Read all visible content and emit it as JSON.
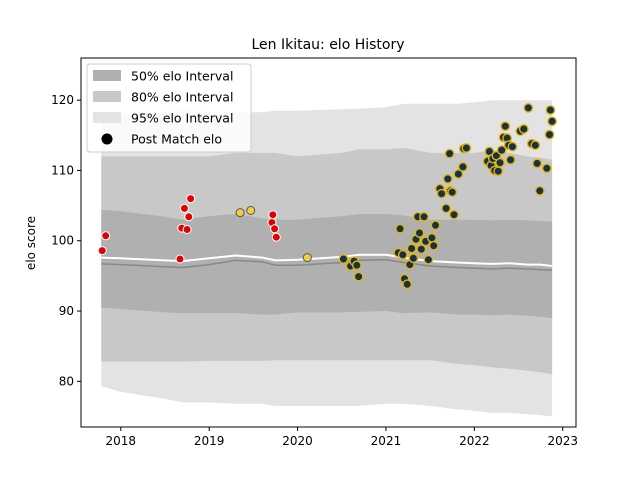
{
  "chart_data": {
    "type": "scatter",
    "title": "Len Ikitau: elo History",
    "xlabel": "",
    "ylabel": "elo score",
    "xlim": [
      2017.55,
      2023.15
    ],
    "ylim": [
      73.5,
      126
    ],
    "xticks": [
      2018,
      2019,
      2020,
      2021,
      2022,
      2023
    ],
    "yticks": [
      80,
      90,
      100,
      110,
      120
    ],
    "legend_position": "top-left",
    "legend": [
      {
        "label": "50% elo Interval",
        "kind": "band50"
      },
      {
        "label": "80% elo Interval",
        "kind": "band80"
      },
      {
        "label": "95% elo Interval",
        "kind": "band95"
      },
      {
        "label": "Post Match elo",
        "kind": "point"
      }
    ],
    "colors": {
      "band50": "#b0b0b0",
      "band80": "#c8c8c8",
      "band95": "#e3e3e3",
      "median_line": "#888888",
      "mean_line": "#ffffff",
      "early_points": "#e00000",
      "late_points_fill": "#123252",
      "late_points_edge": "#e8b400",
      "mid_points_fill": "#f0d040"
    },
    "interval_x": [
      2017.78,
      2018.0,
      2018.5,
      2018.7,
      2019.0,
      2019.3,
      2019.6,
      2019.75,
      2020.0,
      2020.5,
      2020.7,
      2021.0,
      2021.2,
      2021.5,
      2021.8,
      2022.0,
      2022.2,
      2022.4,
      2022.6,
      2022.75,
      2022.88
    ],
    "median": [
      96.7,
      96.6,
      96.3,
      96.2,
      96.6,
      97.2,
      97.0,
      96.5,
      96.5,
      96.9,
      97.2,
      97.3,
      96.9,
      96.4,
      96.2,
      96.1,
      96.0,
      96.1,
      96.0,
      95.9,
      95.8
    ],
    "mean": [
      97.6,
      97.5,
      97.2,
      97.1,
      97.5,
      97.9,
      97.6,
      97.2,
      97.3,
      97.7,
      98.0,
      98.0,
      97.6,
      97.1,
      96.9,
      96.8,
      96.7,
      96.8,
      96.6,
      96.6,
      96.4
    ],
    "p50_low": [
      90.5,
      90.3,
      89.8,
      89.7,
      89.7,
      89.7,
      89.5,
      89.5,
      89.8,
      89.8,
      89.9,
      90.0,
      89.7,
      89.8,
      89.5,
      89.5,
      89.4,
      89.5,
      89.3,
      89.2,
      89.0
    ],
    "p50_high": [
      104.4,
      104.2,
      103.4,
      103.0,
      103.5,
      103.8,
      103.2,
      103.0,
      103.0,
      103.5,
      103.8,
      103.8,
      103.6,
      103.0,
      103.0,
      103.0,
      102.9,
      103.0,
      102.9,
      102.8,
      102.7
    ],
    "p80_low": [
      82.8,
      82.8,
      82.8,
      82.8,
      82.9,
      82.9,
      82.9,
      83.0,
      83.0,
      83.0,
      83.0,
      83.0,
      83.0,
      83.0,
      82.5,
      82.3,
      82.0,
      81.8,
      81.5,
      81.3,
      81.0
    ],
    "p80_high": [
      112.0,
      112.0,
      112.0,
      112.0,
      112.0,
      112.5,
      112.5,
      112.5,
      112.0,
      112.5,
      113.0,
      113.0,
      113.2,
      112.5,
      112.5,
      112.5,
      112.8,
      112.5,
      112.0,
      111.8,
      111.5
    ],
    "p95_low": [
      79.3,
      78.5,
      77.5,
      77.0,
      77.0,
      76.8,
      76.8,
      76.5,
      76.5,
      76.5,
      76.5,
      76.8,
      76.8,
      76.5,
      76.0,
      75.8,
      75.5,
      75.5,
      75.3,
      75.2,
      75.0
    ],
    "p95_high": [
      117.5,
      117.8,
      118.3,
      118.5,
      118.3,
      118.2,
      118.3,
      118.5,
      118.5,
      118.7,
      118.8,
      119.0,
      119.5,
      119.5,
      119.5,
      119.7,
      120.0,
      120.0,
      120.0,
      120.0,
      120.0
    ],
    "points_early": [
      {
        "x": 2017.79,
        "y": 98.6
      },
      {
        "x": 2017.83,
        "y": 100.7
      },
      {
        "x": 2018.67,
        "y": 97.4
      },
      {
        "x": 2018.69,
        "y": 101.8
      },
      {
        "x": 2018.72,
        "y": 104.6
      },
      {
        "x": 2018.75,
        "y": 101.6
      },
      {
        "x": 2018.77,
        "y": 103.4
      },
      {
        "x": 2018.79,
        "y": 106.0
      },
      {
        "x": 2019.71,
        "y": 102.6
      },
      {
        "x": 2019.72,
        "y": 103.7
      },
      {
        "x": 2019.74,
        "y": 101.7
      },
      {
        "x": 2019.76,
        "y": 100.5
      }
    ],
    "points_mid": [
      {
        "x": 2019.35,
        "y": 104.0
      },
      {
        "x": 2019.47,
        "y": 104.3
      },
      {
        "x": 2020.11,
        "y": 97.6
      }
    ],
    "points_late": [
      {
        "x": 2020.52,
        "y": 97.4
      },
      {
        "x": 2020.6,
        "y": 96.4
      },
      {
        "x": 2020.64,
        "y": 97.1
      },
      {
        "x": 2020.67,
        "y": 96.5
      },
      {
        "x": 2020.69,
        "y": 94.9
      },
      {
        "x": 2021.14,
        "y": 98.3
      },
      {
        "x": 2021.16,
        "y": 101.7
      },
      {
        "x": 2021.19,
        "y": 98.0
      },
      {
        "x": 2021.21,
        "y": 94.6
      },
      {
        "x": 2021.24,
        "y": 93.8
      },
      {
        "x": 2021.27,
        "y": 96.6
      },
      {
        "x": 2021.29,
        "y": 98.9
      },
      {
        "x": 2021.31,
        "y": 97.5
      },
      {
        "x": 2021.34,
        "y": 100.2
      },
      {
        "x": 2021.36,
        "y": 103.4
      },
      {
        "x": 2021.38,
        "y": 101.1
      },
      {
        "x": 2021.4,
        "y": 98.8
      },
      {
        "x": 2021.43,
        "y": 103.4
      },
      {
        "x": 2021.45,
        "y": 99.9
      },
      {
        "x": 2021.48,
        "y": 97.3
      },
      {
        "x": 2021.52,
        "y": 100.4
      },
      {
        "x": 2021.54,
        "y": 99.3
      },
      {
        "x": 2021.56,
        "y": 102.2
      },
      {
        "x": 2021.61,
        "y": 107.4
      },
      {
        "x": 2021.63,
        "y": 106.7
      },
      {
        "x": 2021.68,
        "y": 104.6
      },
      {
        "x": 2021.7,
        "y": 108.8
      },
      {
        "x": 2021.73,
        "y": 107.1
      },
      {
        "x": 2021.75,
        "y": 106.9
      },
      {
        "x": 2021.72,
        "y": 112.4
      },
      {
        "x": 2021.77,
        "y": 103.7
      },
      {
        "x": 2021.82,
        "y": 109.5
      },
      {
        "x": 2021.87,
        "y": 110.5
      },
      {
        "x": 2021.88,
        "y": 113.1
      },
      {
        "x": 2021.91,
        "y": 113.2
      },
      {
        "x": 2022.15,
        "y": 111.3
      },
      {
        "x": 2022.17,
        "y": 112.7
      },
      {
        "x": 2022.19,
        "y": 110.7
      },
      {
        "x": 2022.21,
        "y": 111.7
      },
      {
        "x": 2022.23,
        "y": 110.0
      },
      {
        "x": 2022.25,
        "y": 112.1
      },
      {
        "x": 2022.27,
        "y": 109.9
      },
      {
        "x": 2022.29,
        "y": 111.1
      },
      {
        "x": 2022.31,
        "y": 112.9
      },
      {
        "x": 2022.33,
        "y": 114.7
      },
      {
        "x": 2022.35,
        "y": 116.3
      },
      {
        "x": 2022.37,
        "y": 114.6
      },
      {
        "x": 2022.39,
        "y": 113.6
      },
      {
        "x": 2022.41,
        "y": 111.5
      },
      {
        "x": 2022.43,
        "y": 113.4
      },
      {
        "x": 2022.52,
        "y": 115.6
      },
      {
        "x": 2022.56,
        "y": 115.9
      },
      {
        "x": 2022.61,
        "y": 118.9
      },
      {
        "x": 2022.65,
        "y": 113.8
      },
      {
        "x": 2022.69,
        "y": 113.6
      },
      {
        "x": 2022.71,
        "y": 111.0
      },
      {
        "x": 2022.74,
        "y": 107.1
      },
      {
        "x": 2022.82,
        "y": 110.3
      },
      {
        "x": 2022.85,
        "y": 115.1
      },
      {
        "x": 2022.86,
        "y": 118.6
      },
      {
        "x": 2022.88,
        "y": 117.0
      }
    ]
  }
}
